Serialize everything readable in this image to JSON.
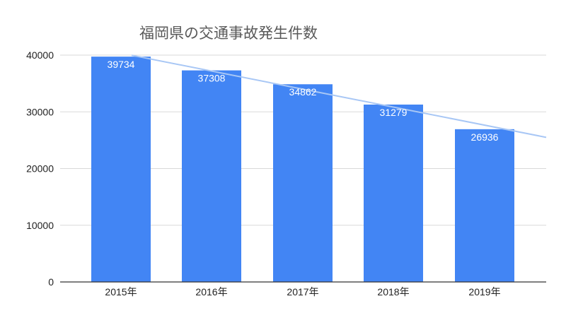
{
  "chart_data": {
    "type": "bar",
    "title": "福岡県の交通事故発生件数",
    "categories": [
      "2015年",
      "2016年",
      "2017年",
      "2018年",
      "2019年"
    ],
    "values": [
      39734,
      37308,
      34862,
      31279,
      26936
    ],
    "data_labels": [
      "39734",
      "37308",
      "34862",
      "31279",
      "26936"
    ],
    "ylim": [
      0,
      40000
    ],
    "yticks": [
      "0",
      "10000",
      "20000",
      "30000",
      "40000"
    ],
    "xlabel": "",
    "ylabel": "",
    "grid": true,
    "legend": "none",
    "trendline": {
      "type": "linear",
      "color": "#a8c7f5"
    },
    "colors": {
      "bar": "#4285f4",
      "label": "#ffffff",
      "grid": "#d9d9d9",
      "title": "#595959"
    }
  }
}
